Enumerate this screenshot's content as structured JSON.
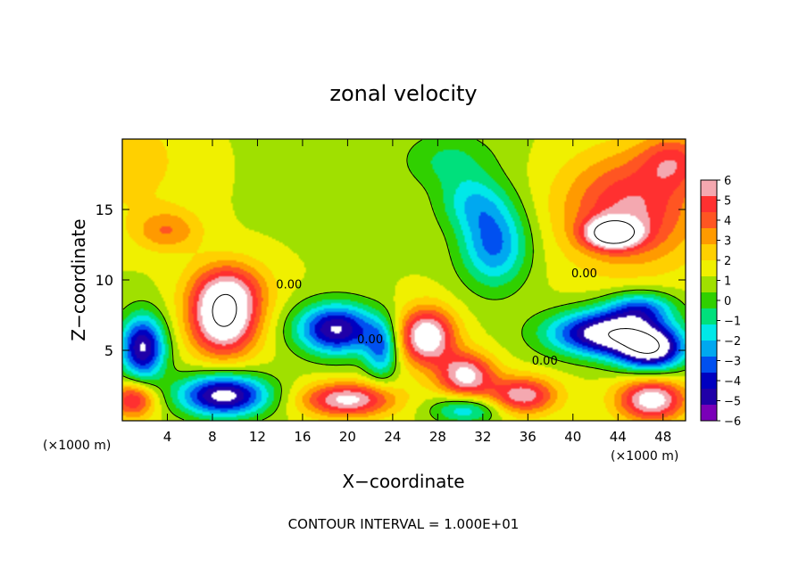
{
  "chart_data": {
    "type": "heatmap",
    "title": "zonal velocity",
    "xlabel": "X−coordinate",
    "ylabel": "Z−coordinate",
    "x_unit_left": "(×1000 m)",
    "x_unit_right": "(×1000 m)",
    "footer": "CONTOUR INTERVAL = 1.000E+01",
    "xlim": [
      0,
      50
    ],
    "ylim": [
      0,
      20
    ],
    "x_ticks": [
      4,
      8,
      12,
      16,
      20,
      24,
      28,
      32,
      36,
      40,
      44,
      48
    ],
    "y_ticks": [
      5,
      10,
      15
    ],
    "colorbar": {
      "ticks": [
        6,
        5,
        4,
        3,
        2,
        1,
        0,
        -1,
        -2,
        -3,
        -4,
        -5,
        -6
      ],
      "tick_labels": [
        "6",
        "5",
        "4",
        "3",
        "2",
        "1",
        "0",
        "−1",
        "−2",
        "−3",
        "−4",
        "−5",
        "−6"
      ],
      "colors": [
        "#f4a8b0",
        "#ff3030",
        "#ff5522",
        "#ff9a00",
        "#ffd000",
        "#f0f000",
        "#a0e000",
        "#30d000",
        "#00e07c",
        "#00e8e8",
        "#00a8f0",
        "#0050f0",
        "#0000c0",
        "#2000a8",
        "#7a00b8"
      ]
    },
    "contour_labels": [
      {
        "text": "0.00",
        "x": 14.8,
        "y": 9.4
      },
      {
        "text": "0.00",
        "x": 37.5,
        "y": 4.0
      },
      {
        "text": "0.00",
        "x": 41.0,
        "y": 10.2
      },
      {
        "text": "0.00",
        "x": 22.0,
        "y": 5.5
      }
    ],
    "features": [
      {
        "x": 0,
        "y": 18.5,
        "v": 1.5,
        "rx": 6,
        "ry": 4
      },
      {
        "x": 45,
        "y": 15,
        "v": 4.5,
        "rx": 6,
        "ry": 4
      },
      {
        "x": 43.5,
        "y": 13.3,
        "v": 7,
        "rx": 2.3,
        "ry": 1
      },
      {
        "x": 49,
        "y": 18.5,
        "v": 3,
        "rx": 3,
        "ry": 2
      },
      {
        "x": 33,
        "y": 12.5,
        "v": -4.5,
        "rx": 3,
        "ry": 3
      },
      {
        "x": 31,
        "y": 15.5,
        "v": -2.5,
        "rx": 3,
        "ry": 2
      },
      {
        "x": 29,
        "y": 18.5,
        "v": -1.8,
        "rx": 4,
        "ry": 2
      },
      {
        "x": 4,
        "y": 13.5,
        "v": 2.5,
        "rx": 3,
        "ry": 1.5
      },
      {
        "x": 9.5,
        "y": 9.5,
        "v": 3,
        "rx": 3.5,
        "ry": 2
      },
      {
        "x": 9,
        "y": 7.2,
        "v": 7,
        "rx": 3,
        "ry": 2.6
      },
      {
        "x": 1.8,
        "y": 5.2,
        "v": -7,
        "rx": 2,
        "ry": 2.3
      },
      {
        "x": 19,
        "y": 6.5,
        "v": -7,
        "rx": 3.5,
        "ry": 1.8
      },
      {
        "x": 23,
        "y": 5,
        "v": -4,
        "rx": 1.5,
        "ry": 2
      },
      {
        "x": 27,
        "y": 6,
        "v": 6.5,
        "rx": 2.5,
        "ry": 2
      },
      {
        "x": 30.5,
        "y": 3.2,
        "v": 5.5,
        "rx": 2.5,
        "ry": 1.6
      },
      {
        "x": 35.5,
        "y": 1.8,
        "v": 5,
        "rx": 3,
        "ry": 1.3
      },
      {
        "x": 43,
        "y": 6.2,
        "v": -8,
        "rx": 5,
        "ry": 1.6
      },
      {
        "x": 47,
        "y": 5,
        "v": -7,
        "rx": 3,
        "ry": 1.5
      },
      {
        "x": 46,
        "y": 8,
        "v": -4,
        "rx": 3,
        "ry": 1.2
      },
      {
        "x": 9,
        "y": 1.8,
        "v": -7.5,
        "rx": 4,
        "ry": 1.5
      },
      {
        "x": 20,
        "y": 1.5,
        "v": 5.5,
        "rx": 4,
        "ry": 1.2
      },
      {
        "x": 30.5,
        "y": 0.8,
        "v": -3.5,
        "rx": 3,
        "ry": 1
      },
      {
        "x": 47,
        "y": 1.5,
        "v": 6,
        "rx": 3,
        "ry": 1.5
      },
      {
        "x": 1,
        "y": 1.5,
        "v": 4.5,
        "rx": 2,
        "ry": 1.3
      }
    ]
  }
}
